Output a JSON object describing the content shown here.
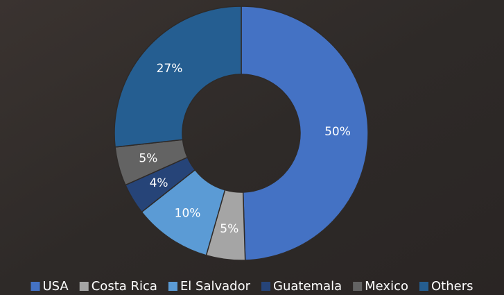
{
  "chart_data": {
    "type": "donut",
    "categories": [
      "USA",
      "Costa Rica",
      "El Salvador",
      "Guatemala",
      "Mexico",
      "Others"
    ],
    "values": [
      50,
      5,
      10,
      4,
      5,
      27
    ],
    "value_labels": [
      "50%",
      "5%",
      "10%",
      "4%",
      "5%",
      "27%"
    ],
    "colors": [
      "#4472c4",
      "#a5a5a5",
      "#5b9bd5",
      "#264478",
      "#636363",
      "#255e91"
    ],
    "legend": "bottom"
  }
}
